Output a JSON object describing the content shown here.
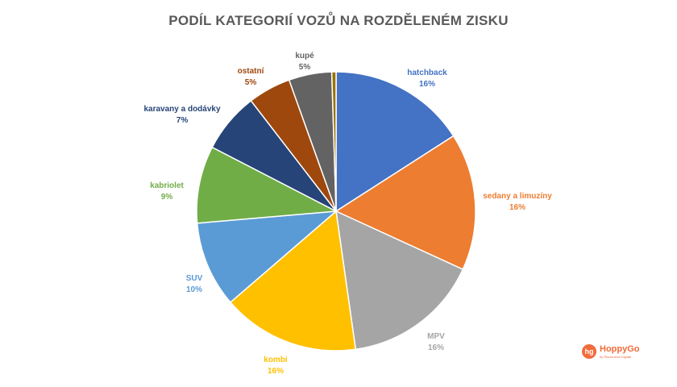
{
  "chart_data": {
    "type": "pie",
    "title": "PODÍL KATEGORIÍ VOZŮ NA ROZDĚLENÉM ZISKU",
    "slices": [
      {
        "label": "hatchback",
        "value": 16,
        "display": "16%",
        "color": "#4472C4"
      },
      {
        "label": "sedany a limuzíny",
        "value": 16,
        "display": "16%",
        "color": "#ED7D31"
      },
      {
        "label": "MPV",
        "value": 16,
        "display": "16%",
        "color": "#A5A5A5"
      },
      {
        "label": "kombi",
        "value": 16,
        "display": "16%",
        "color": "#FFC000"
      },
      {
        "label": "SUV",
        "value": 10,
        "display": "10%",
        "color": "#5B9BD5"
      },
      {
        "label": "kabriolet",
        "value": 9,
        "display": "9%",
        "color": "#70AD47"
      },
      {
        "label": "karavany a dodávky",
        "value": 7,
        "display": "7%",
        "color": "#264478"
      },
      {
        "label": "ostatní",
        "value": 5,
        "display": "5%",
        "color": "#9E480E"
      },
      {
        "label": "kupé",
        "value": 5,
        "display": "5%",
        "color": "#636363"
      },
      {
        "label": "",
        "value": 0.5,
        "display": "",
        "color": "#997300"
      }
    ]
  },
  "logo": {
    "name": "HoppyGo",
    "tagline": "by Škoda Auto Digilab",
    "mark": "hg"
  }
}
